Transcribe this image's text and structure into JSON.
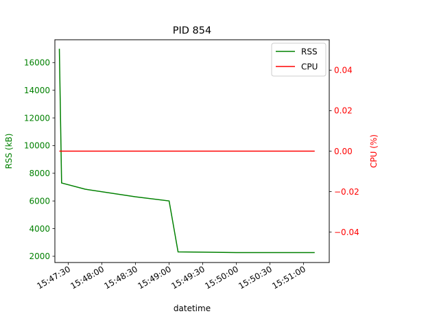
{
  "chart_data": {
    "type": "line",
    "title": "PID 854",
    "xlabel": "datetime",
    "ylabel_left": "RSS (kB)",
    "ylabel_right": "CPU (%)",
    "x_ticks": [
      "15:47:30",
      "15:48:00",
      "15:48:30",
      "15:49:00",
      "15:49:30",
      "15:50:00",
      "15:50:30",
      "15:51:00"
    ],
    "x_range": [
      "15:47:18",
      "15:51:23"
    ],
    "y_left_ticks": [
      2000,
      4000,
      6000,
      8000,
      10000,
      12000,
      14000,
      16000
    ],
    "y_left_range": [
      1550,
      17650
    ],
    "y_right_ticks": [
      -0.04,
      -0.02,
      0.0,
      0.02,
      0.04
    ],
    "y_right_range": [
      -0.055,
      0.055
    ],
    "legend_position": "top-right",
    "grid": false,
    "series": [
      {
        "name": "RSS",
        "axis": "left",
        "color": "#008000",
        "points": [
          [
            "15:47:22",
            17000
          ],
          [
            "15:47:24",
            7300
          ],
          [
            "15:47:45",
            6850
          ],
          [
            "15:48:30",
            6300
          ],
          [
            "15:49:00",
            6000
          ],
          [
            "15:49:08",
            2320
          ],
          [
            "15:49:30",
            2300
          ],
          [
            "15:50:00",
            2270
          ],
          [
            "15:50:30",
            2270
          ],
          [
            "15:51:00",
            2270
          ],
          [
            "15:51:10",
            2270
          ]
        ]
      },
      {
        "name": "CPU",
        "axis": "right",
        "color": "#ff0000",
        "points": [
          [
            "15:47:22",
            0.0
          ],
          [
            "15:51:10",
            0.0
          ]
        ]
      }
    ]
  }
}
